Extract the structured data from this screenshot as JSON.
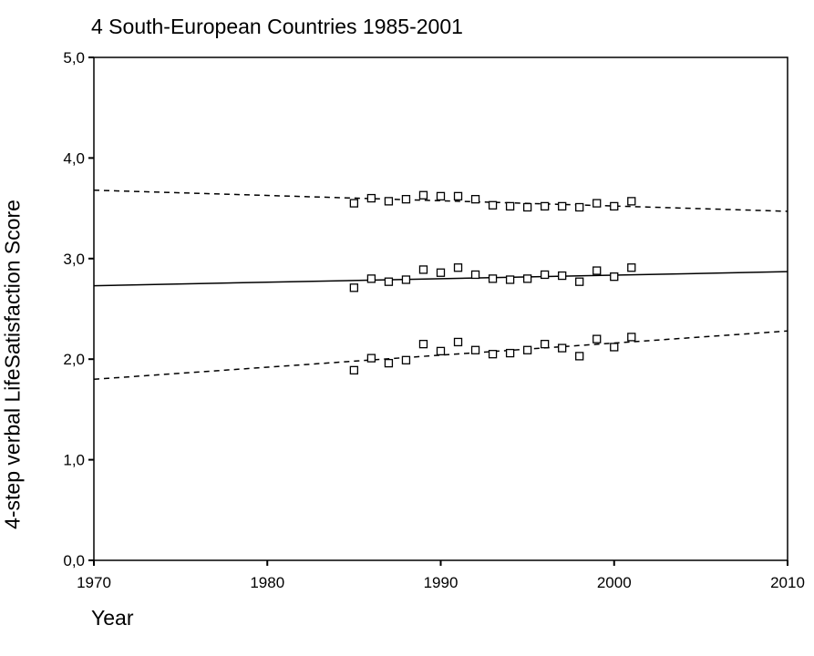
{
  "chart_data": {
    "type": "scatter",
    "title": "4 South-European Countries 1985-2001",
    "xlabel": "Year",
    "ylabel": "4-step verbal LifeSatisfaction Score",
    "xlim": [
      1970,
      2010
    ],
    "ylim": [
      0,
      5
    ],
    "xticks": [
      1970,
      1980,
      1990,
      2000,
      2010
    ],
    "yticks": [
      "0,0",
      "1,0",
      "2,0",
      "3,0",
      "4,0",
      "5,0"
    ],
    "grid": false,
    "points": {
      "upper": {
        "x": [
          1985,
          1986,
          1987,
          1988,
          1989,
          1990,
          1991,
          1992,
          1993,
          1994,
          1995,
          1996,
          1997,
          1998,
          1999,
          2000,
          2001
        ],
        "y": [
          3.55,
          3.6,
          3.57,
          3.59,
          3.63,
          3.62,
          3.62,
          3.59,
          3.53,
          3.52,
          3.51,
          3.52,
          3.52,
          3.51,
          3.55,
          3.52,
          3.57
        ]
      },
      "middle": {
        "x": [
          1985,
          1986,
          1987,
          1988,
          1989,
          1990,
          1991,
          1992,
          1993,
          1994,
          1995,
          1996,
          1997,
          1998,
          1999,
          2000,
          2001
        ],
        "y": [
          2.71,
          2.8,
          2.77,
          2.79,
          2.89,
          2.86,
          2.91,
          2.84,
          2.8,
          2.79,
          2.8,
          2.84,
          2.83,
          2.77,
          2.88,
          2.82,
          2.91
        ]
      },
      "lower": {
        "x": [
          1985,
          1986,
          1987,
          1988,
          1989,
          1990,
          1991,
          1992,
          1993,
          1994,
          1995,
          1996,
          1997,
          1998,
          1999,
          2000,
          2001
        ],
        "y": [
          1.89,
          2.01,
          1.96,
          1.99,
          2.15,
          2.08,
          2.17,
          2.09,
          2.05,
          2.06,
          2.09,
          2.15,
          2.11,
          2.03,
          2.2,
          2.12,
          2.22
        ]
      }
    },
    "lines": [
      {
        "style": "dashed",
        "x": [
          1970,
          2010
        ],
        "y": [
          3.68,
          3.47
        ]
      },
      {
        "style": "solid",
        "x": [
          1970,
          2010
        ],
        "y": [
          2.73,
          2.87
        ]
      },
      {
        "style": "dashed",
        "x": [
          1970,
          2010
        ],
        "y": [
          1.8,
          2.28
        ]
      }
    ]
  }
}
